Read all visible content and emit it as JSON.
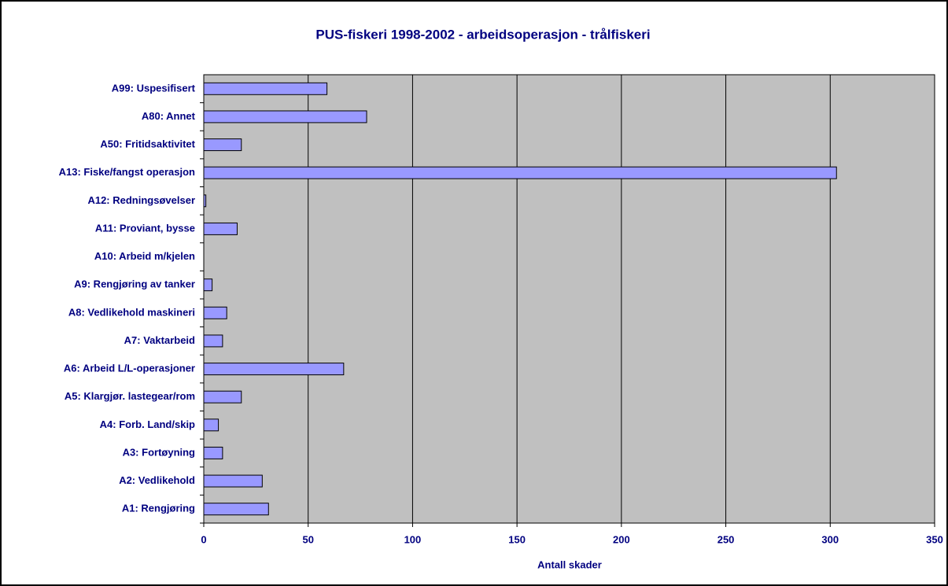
{
  "chart_data": {
    "type": "barh",
    "title": "PUS-fiskeri 1998-2002 - arbeidsoperasjon - trålfiskeri",
    "x_label": "Antall skader",
    "categories": [
      "A1: Rengjøring",
      "A2: Vedlikehold",
      "A3: Fortøyning",
      "A4: Forb. Land/skip",
      "A5: Klargjør. lastegear/rom",
      "A6: Arbeid L/L-operasjoner",
      "A7: Vaktarbeid",
      "A8: Vedlikehold maskineri",
      "A9: Rengjøring av tanker",
      "A10: Arbeid m/kjelen",
      "A11: Proviant, bysse",
      "A12: Redningsøvelser",
      "A13: Fiske/fangst operasjon",
      "A50: Fritidsaktivitet",
      "A80: Annet",
      "A99: Uspesifisert"
    ],
    "values": [
      31,
      28,
      9,
      7,
      18,
      67,
      9,
      11,
      4,
      0,
      16,
      1,
      303,
      18,
      78,
      59
    ],
    "color": "#9999ff",
    "plot_background": "#c0c0c0",
    "xlim": [
      0,
      350
    ],
    "xticks": [
      0,
      50,
      100,
      150,
      200,
      250,
      300,
      350
    ],
    "grid": true
  }
}
